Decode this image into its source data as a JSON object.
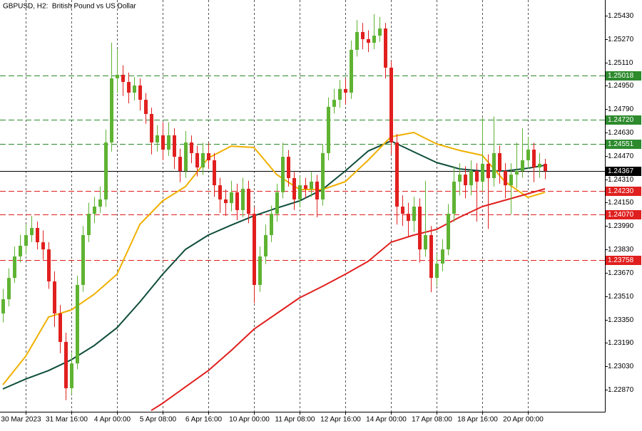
{
  "chart_data": {
    "type": "candlestick",
    "title": "GBPUSD, H2:  British Pound vs US Dollar",
    "up_color": "#5fb332",
    "down_color": "#e0201f",
    "xlim": [
      -0.5,
      105.5
    ],
    "ylim": [
      1.22719,
      1.25537
    ],
    "grid": true,
    "xticks": [
      {
        "value": 4,
        "label": "30 Mar 2023"
      },
      {
        "value": 12,
        "label": "31 Mar 16:00"
      },
      {
        "value": 20,
        "label": "4 Apr 00:00"
      },
      {
        "value": 28,
        "label": "5 Apr 08:00"
      },
      {
        "value": 36,
        "label": "6 Apr 16:00"
      },
      {
        "value": 44,
        "label": "10 Apr 00:00"
      },
      {
        "value": 52,
        "label": "11 Apr 08:00"
      },
      {
        "value": 60,
        "label": "12 Apr 16:00"
      },
      {
        "value": 68,
        "label": "14 Apr 00:00"
      },
      {
        "value": 76,
        "label": "17 Apr 08:00"
      },
      {
        "value": 84,
        "label": "18 Apr 16:00"
      },
      {
        "value": 92,
        "label": "20 Apr 00:00"
      }
    ],
    "yticks": [
      {
        "value": 1.2543,
        "label": "1.25430"
      },
      {
        "value": 1.2527,
        "label": "1.25270"
      },
      {
        "value": 1.2511,
        "label": "1.25110"
      },
      {
        "value": 1.2495,
        "label": "1.24950"
      },
      {
        "value": 1.2479,
        "label": "1.24790"
      },
      {
        "value": 1.2463,
        "label": "1.24630"
      },
      {
        "value": 1.2447,
        "label": "1.24470"
      },
      {
        "value": 1.2431,
        "label": "1.24310"
      },
      {
        "value": 1.2415,
        "label": "1.24150"
      },
      {
        "value": 1.2399,
        "label": "1.23990"
      },
      {
        "value": 1.2383,
        "label": "1.23830"
      },
      {
        "value": 1.2367,
        "label": "1.23670"
      },
      {
        "value": 1.2351,
        "label": "1.23510"
      },
      {
        "value": 1.2335,
        "label": "1.23350"
      },
      {
        "value": 1.2319,
        "label": "1.23190"
      },
      {
        "value": 1.2303,
        "label": "1.23030"
      },
      {
        "value": 1.2287,
        "label": "1.22870"
      }
    ],
    "levels": [
      1.25018,
      {
        "value": 1.2472,
        "label": "1.24720"
      },
      1.24551,
      {
        "value": 1.2423,
        "label": "1.24230"
      },
      {
        "value": 1.2407,
        "label": "1.24070"
      },
      1.23758
    ],
    "level_colors": [
      "#2d8a2d",
      "#2d8a2d",
      "#2d8a2d",
      "#e0201f",
      "#e0201f",
      "#e0201f"
    ],
    "current_price": 1.24367,
    "current_color": "#000000",
    "open": [
      1.23392,
      1.23489,
      1.23635,
      1.23782,
      1.23855,
      1.23928,
      1.23977,
      1.23879,
      1.2383,
      1.23611,
      1.23392,
      1.23197,
      1.2288,
      1.2305,
      1.23587,
      1.23928,
      1.24074,
      1.24123,
      1.24172,
      1.24562,
      1.25001,
      1.25025,
      1.24976,
      1.24903,
      1.24952,
      1.24854,
      1.24757,
      1.24562,
      1.24611,
      1.24513,
      1.24611,
      1.24464,
      1.24367,
      1.24562,
      1.24489,
      1.24391,
      1.24489,
      1.2444,
      1.24269,
      1.24172,
      1.24147,
      1.24221,
      1.24099,
      1.24245,
      1.24074,
      1.23587,
      1.23782,
      1.23928,
      1.24074,
      1.24221,
      1.24464,
      1.24318,
      1.24172,
      1.24269,
      1.24245,
      1.24294,
      1.24172,
      1.24489,
      1.24806,
      1.24854,
      1.24928,
      1.24903,
      1.25196,
      1.25318,
      1.25269,
      1.25244,
      1.25293,
      1.25342,
      1.25074,
      1.24562,
      1.24123,
      1.24074,
      1.24025,
      1.24123,
      1.2383,
      1.23928,
      1.23635,
      1.23733,
      1.2383,
      1.24074,
      1.24294,
      1.24342,
      1.24269,
      1.24367,
      1.24294,
      1.24416,
      1.24318,
      1.24489,
      1.24367,
      1.24269,
      1.24342,
      1.24367,
      1.2444,
      1.24513,
      1.24391,
      1.24416
    ],
    "high": [
      1.2356,
      1.237,
      1.2385,
      1.2393,
      1.24,
      1.2406,
      1.2402,
      1.2396,
      1.2388,
      1.2368,
      1.2345,
      1.2326,
      1.2312,
      1.2365,
      1.2399,
      1.2415,
      1.2419,
      1.2426,
      1.2465,
      1.25245,
      1.252,
      1.2509,
      1.2504,
      1.2501,
      1.25,
      1.249,
      1.248,
      1.2468,
      1.247,
      1.247,
      1.2466,
      1.2452,
      1.2464,
      1.2461,
      1.2454,
      1.2456,
      1.2456,
      1.2449,
      1.2432,
      1.2424,
      1.243,
      1.2428,
      1.2432,
      1.243,
      1.2412,
      1.2385,
      1.24,
      1.2413,
      1.2428,
      1.2456,
      1.2451,
      1.2436,
      1.2433,
      1.2432,
      1.2436,
      1.2434,
      1.2455,
      1.2487,
      1.2493,
      1.2499,
      1.25,
      1.2526,
      1.254,
      1.2538,
      1.2533,
      1.2544,
      1.2542,
      1.2538,
      1.2512,
      1.2462,
      1.242,
      1.2415,
      1.2419,
      1.2418,
      1.243,
      1.2399,
      1.238,
      1.239,
      1.2414,
      1.244,
      1.2442,
      1.244,
      1.2444,
      1.2442,
      1.2473,
      1.2448,
      1.2474,
      1.2454,
      1.2442,
      1.2442,
      1.2456,
      1.2466,
      1.246,
      1.2456,
      1.2449,
      1.2445
    ],
    "low": [
      1.2333,
      1.2344,
      1.236,
      1.2374,
      1.238,
      1.2388,
      1.2383,
      1.2376,
      1.2356,
      1.233,
      1.2312,
      1.22798,
      1.2284,
      1.2301,
      1.2354,
      1.2388,
      1.2401,
      1.2408,
      1.2412,
      1.245,
      1.249,
      1.2488,
      1.2483,
      1.2485,
      1.2478,
      1.2469,
      1.2448,
      1.245,
      1.2444,
      1.2447,
      1.2438,
      1.2429,
      1.2432,
      1.2442,
      1.2433,
      1.2434,
      1.2438,
      1.2419,
      1.2408,
      1.2406,
      1.2409,
      1.2403,
      1.2405,
      1.2401,
      1.23464,
      1.2354,
      1.2373,
      1.2388,
      1.2402,
      1.2418,
      1.2426,
      1.241,
      1.2412,
      1.2418,
      1.2419,
      1.2405,
      1.2413,
      1.2444,
      1.2476,
      1.248,
      1.2482,
      1.2486,
      1.2515,
      1.252,
      1.2518,
      1.252,
      1.2525,
      1.25,
      1.2448,
      1.24,
      1.2399,
      1.2392,
      1.2395,
      1.2374,
      1.2378,
      1.23537,
      1.2358,
      1.2368,
      1.2379,
      1.2402,
      1.242,
      1.2418,
      1.242,
      1.2402,
      1.2423,
      1.2397,
      1.2426,
      1.2428,
      1.2418,
      1.2407,
      1.2425,
      1.2432,
      1.2438,
      1.2429,
      1.2432,
      1.2431
    ],
    "close": [
      1.23489,
      1.23635,
      1.23782,
      1.23855,
      1.23928,
      1.23977,
      1.23879,
      1.2383,
      1.23611,
      1.23392,
      1.23197,
      1.2288,
      1.2305,
      1.23587,
      1.23928,
      1.24074,
      1.24123,
      1.24172,
      1.24562,
      1.25001,
      1.25025,
      1.24976,
      1.24903,
      1.24952,
      1.24854,
      1.24757,
      1.24562,
      1.24611,
      1.24513,
      1.24611,
      1.24464,
      1.24367,
      1.24562,
      1.24489,
      1.24391,
      1.24489,
      1.2444,
      1.24269,
      1.24172,
      1.24147,
      1.24221,
      1.24099,
      1.24245,
      1.24074,
      1.23587,
      1.23782,
      1.23928,
      1.24074,
      1.24221,
      1.24464,
      1.24318,
      1.24172,
      1.24269,
      1.24245,
      1.24294,
      1.24172,
      1.24489,
      1.24806,
      1.24854,
      1.24928,
      1.24903,
      1.25196,
      1.25318,
      1.25269,
      1.25244,
      1.25293,
      1.25342,
      1.25074,
      1.24562,
      1.24123,
      1.24074,
      1.24025,
      1.24123,
      1.2383,
      1.23928,
      1.23635,
      1.23733,
      1.2383,
      1.24074,
      1.24294,
      1.24342,
      1.24269,
      1.24367,
      1.24294,
      1.24416,
      1.24318,
      1.24489,
      1.24367,
      1.24269,
      1.24342,
      1.24367,
      1.2444,
      1.24513,
      1.24391,
      1.24416,
      1.24367
    ],
    "series": [
      {
        "color": "#0f4d3c",
        "x": [
          0,
          4,
          8,
          12,
          16,
          20,
          24,
          28,
          32,
          36,
          40,
          44,
          48,
          52,
          56,
          60,
          64,
          68,
          72,
          76,
          80,
          84,
          88,
          92,
          95
        ],
        "values": [
          1.22875,
          1.22943,
          1.23001,
          1.23075,
          1.23172,
          1.23294,
          1.2347,
          1.2366,
          1.2383,
          1.23928,
          1.23996,
          1.2406,
          1.24113,
          1.24162,
          1.2424,
          1.24367,
          1.24503,
          1.24572,
          1.24498,
          1.24425,
          1.24381,
          1.24367,
          1.24367,
          1.24386,
          1.24406
        ]
      },
      {
        "color": "#f0b000",
        "x": [
          0,
          4,
          8,
          12,
          16,
          20,
          24,
          28,
          32,
          36,
          40,
          44,
          48,
          52,
          56,
          60,
          64,
          68,
          72,
          76,
          80,
          84,
          88,
          92,
          95
        ],
        "values": [
          1.22904,
          1.23099,
          1.23367,
          1.23416,
          1.23523,
          1.2366,
          1.24001,
          1.24162,
          1.2426,
          1.24455,
          1.24537,
          1.24528,
          1.24342,
          1.2424,
          1.2424,
          1.24294,
          1.2444,
          1.24601,
          1.2463,
          1.24552,
          1.24508,
          1.24474,
          1.24294,
          1.24186,
          1.24221
        ]
      },
      {
        "color": "#e0201f",
        "x": [
          26,
          28,
          32,
          36,
          40,
          44,
          48,
          52,
          56,
          60,
          64,
          68,
          72,
          76,
          80,
          84,
          88,
          92,
          95
        ],
        "values": [
          1.22728,
          1.22777,
          1.22889,
          1.23001,
          1.23138,
          1.23284,
          1.23392,
          1.23499,
          1.23577,
          1.2366,
          1.23748,
          1.23879,
          1.23928,
          1.23967,
          1.2405,
          1.24123,
          1.24167,
          1.24211,
          1.24245
        ]
      }
    ]
  }
}
